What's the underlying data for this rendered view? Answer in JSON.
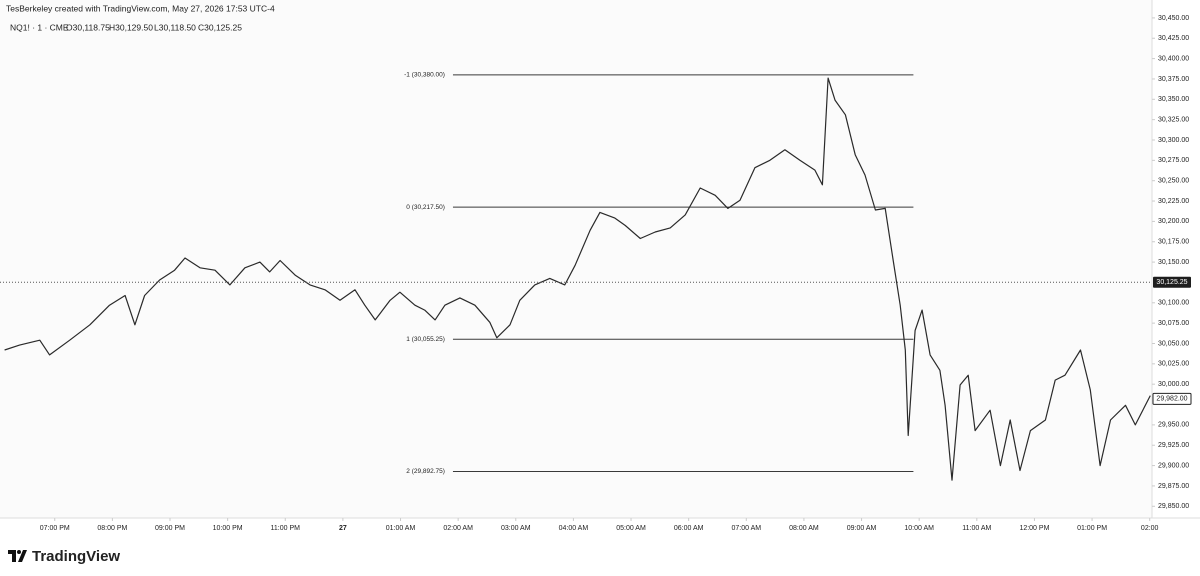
{
  "chart_data": {
    "type": "line",
    "title": "TesBerkeley created with TradingView.com, May 27, 2026 17:53 UTC-4",
    "symbol": "NQ1! · 1 · CME",
    "ohlc": [
      "O30,118.75",
      "H30,129.50",
      "L30,118.50",
      "C30,125.25"
    ],
    "footer": "TradingView",
    "color": "#2a2a2a",
    "grid": false,
    "xlim": [
      -0.95,
      19.04
    ],
    "ylim": [
      29827,
      30472
    ],
    "xticks": [
      {
        "value": 0,
        "label": "07:00 PM"
      },
      {
        "value": 1,
        "label": "08:00 PM"
      },
      {
        "value": 2,
        "label": "09:00 PM"
      },
      {
        "value": 3,
        "label": "10:00 PM"
      },
      {
        "value": 4,
        "label": "11:00 PM"
      },
      {
        "value": 5,
        "label": "27"
      },
      {
        "value": 6,
        "label": "01:00 AM"
      },
      {
        "value": 7,
        "label": "02:00 AM"
      },
      {
        "value": 8,
        "label": "03:00 AM"
      },
      {
        "value": 9,
        "label": "04:00 AM"
      },
      {
        "value": 10,
        "label": "05:00 AM"
      },
      {
        "value": 11,
        "label": "06:00 AM"
      },
      {
        "value": 12,
        "label": "07:00 AM"
      },
      {
        "value": 13,
        "label": "08:00 AM"
      },
      {
        "value": 14,
        "label": "09:00 AM"
      },
      {
        "value": 15,
        "label": "10:00 AM"
      },
      {
        "value": 16,
        "label": "11:00 AM"
      },
      {
        "value": 17,
        "label": "12:00 PM"
      },
      {
        "value": 18,
        "label": "01:00 PM"
      },
      {
        "value": 19,
        "label": "02:00"
      }
    ],
    "yticks": [
      {
        "value": 30450,
        "label": "30,450.00"
      },
      {
        "value": 30425,
        "label": "30,425.00"
      },
      {
        "value": 30400,
        "label": "30,400.00"
      },
      {
        "value": 30375,
        "label": "30,375.00"
      },
      {
        "value": 30350,
        "label": "30,350.00"
      },
      {
        "value": 30325,
        "label": "30,325.00"
      },
      {
        "value": 30300,
        "label": "30,300.00"
      },
      {
        "value": 30275,
        "label": "30,275.00"
      },
      {
        "value": 30250,
        "label": "30,250.00"
      },
      {
        "value": 30225,
        "label": "30,225.00"
      },
      {
        "value": 30200,
        "label": "30,200.00"
      },
      {
        "value": 30175,
        "label": "30,175.00"
      },
      {
        "value": 30150,
        "label": "30,150.00"
      },
      {
        "value": 30100,
        "label": "30,100.00"
      },
      {
        "value": 30075,
        "label": "30,075.00"
      },
      {
        "value": 30050,
        "label": "30,050.00"
      },
      {
        "value": 30025,
        "label": "30,025.00"
      },
      {
        "value": 30000,
        "label": "30,000.00"
      },
      {
        "value": 29950,
        "label": "29,950.00"
      },
      {
        "value": 29925,
        "label": "29,925.00"
      },
      {
        "value": 29900,
        "label": "29,900.00"
      },
      {
        "value": 29875,
        "label": "29,875.00"
      },
      {
        "value": 29850,
        "label": "29,850.00"
      }
    ],
    "price_labels": [
      {
        "value": 30125.25,
        "label": "30,125.25"
      },
      {
        "value": 29982,
        "label": "29,982.00"
      }
    ],
    "fib_x": [
      6.91,
      14.9
    ],
    "fib_levels": [
      {
        "value": 30380,
        "label": "-1 (30,380.00)"
      },
      {
        "value": 30217.5,
        "label": "0 (30,217.50)"
      },
      {
        "value": 30055.25,
        "label": "1 (30,055.25)"
      },
      {
        "value": 29892.75,
        "label": "2 (29,892.75)"
      }
    ],
    "x": [
      -0.87,
      -0.61,
      -0.26,
      -0.09,
      0.26,
      0.61,
      0.95,
      1.22,
      1.39,
      1.56,
      1.82,
      2.08,
      2.26,
      2.52,
      2.78,
      3.04,
      3.3,
      3.56,
      3.73,
      3.91,
      4.17,
      4.43,
      4.69,
      4.95,
      5.21,
      5.38,
      5.56,
      5.82,
      5.99,
      6.25,
      6.42,
      6.6,
      6.77,
      7.03,
      7.29,
      7.55,
      7.67,
      7.9,
      8.07,
      8.33,
      8.59,
      8.85,
      9.03,
      9.29,
      9.46,
      9.72,
      9.9,
      10.16,
      10.42,
      10.68,
      10.94,
      11.2,
      11.46,
      11.68,
      11.89,
      12.15,
      12.41,
      12.67,
      12.93,
      13.19,
      13.32,
      13.42,
      13.54,
      13.72,
      13.89,
      14.06,
      14.24,
      14.41,
      14.55,
      14.67,
      14.76,
      14.81,
      14.93,
      15.05,
      15.19,
      15.36,
      15.45,
      15.57,
      15.71,
      15.85,
      15.97,
      16.23,
      16.41,
      16.58,
      16.75,
      16.93,
      17.19,
      17.36,
      17.53,
      17.8,
      17.97,
      18.14,
      18.32,
      18.58,
      18.75,
      19.01
    ],
    "values": [
      30042,
      30048,
      30054,
      30036,
      30054,
      30073,
      30097,
      30109,
      30073,
      30109,
      30128,
      30140,
      30155,
      30143,
      30140,
      30122,
      30143,
      30150,
      30138,
      30152,
      30134,
      30122,
      30116,
      30103,
      30116,
      30097,
      30079,
      30103,
      30113,
      30097,
      30091,
      30079,
      30097,
      30106,
      30097,
      30076,
      30057,
      30073,
      30103,
      30122,
      30130,
      30122,
      30146,
      30189,
      30211,
      30204,
      30195,
      30179,
      30187,
      30192,
      30208,
      30241,
      30232,
      30216,
      30226,
      30266,
      30275,
      30288,
      30275,
      30263,
      30245,
      30376,
      30349,
      30331,
      30282,
      30257,
      30214,
      30216,
      30152,
      30097,
      30042,
      29937,
      30066,
      30091,
      30036,
      30017,
      29974,
      29882,
      29999,
      30011,
      29943,
      29968,
      29900,
      29956,
      29894,
      29943,
      29956,
      30005,
      30011,
      30042,
      29993,
      29900,
      29956,
      29974,
      29950,
      29986
    ]
  }
}
